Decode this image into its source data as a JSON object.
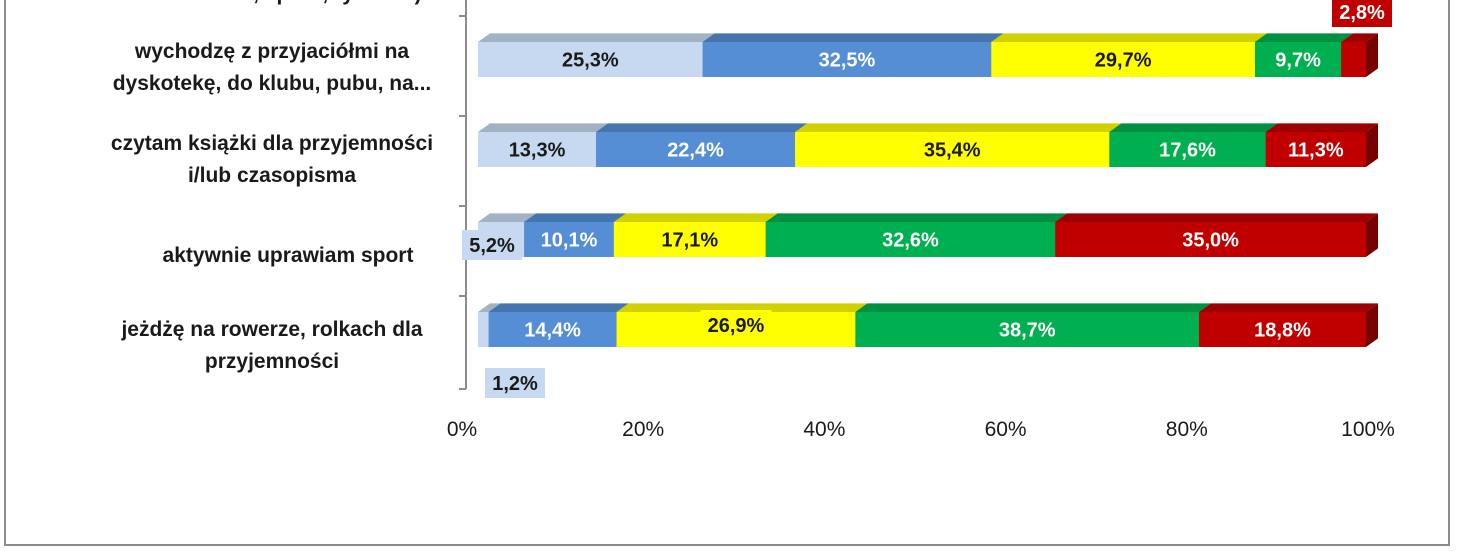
{
  "chart_data": {
    "type": "bar",
    "stacked": "percent",
    "orientation": "horizontal",
    "categories": [
      "instrumencie, śpiew, rysunek)",
      "wychodzę z przyjaciółmi na dyskotekę, do klubu, pubu, na...",
      "czytam książki dla przyjemności i/lub czasopisma",
      "aktywnie uprawiam sport",
      "jeżdżę na rowerze, rolkach dla przyjemności"
    ],
    "category_lines": [
      [
        "instrumencie, śpiew, rysunek)"
      ],
      [
        "wychodzę z przyjaciółmi na",
        "dyskotekę, do klubu, pubu, na..."
      ],
      [
        "czytam książki dla przyjemności",
        "i/lub czasopisma"
      ],
      [
        "aktywnie uprawiam sport"
      ],
      [
        "jeżdżę na rowerze, rolkach dla",
        "przyjemności"
      ]
    ],
    "series": [
      {
        "color": "#c6d9f0",
        "labelColor": "#1a1a1a",
        "values": [
          null,
          25.3,
          13.3,
          5.2,
          1.2
        ]
      },
      {
        "color": "#558ed5",
        "labelColor": "#ffffff",
        "values": [
          null,
          32.5,
          22.4,
          10.1,
          14.4
        ]
      },
      {
        "color": "#ffff00",
        "labelColor": "#1a1a1a",
        "values": [
          null,
          29.7,
          35.4,
          17.1,
          26.9
        ]
      },
      {
        "color": "#00b050",
        "labelColor": "#ffffff",
        "values": [
          null,
          9.7,
          17.6,
          32.6,
          38.7
        ]
      },
      {
        "color": "#c00000",
        "labelColor": "#ffffff",
        "values": [
          2.8,
          2.8,
          11.3,
          35.0,
          18.8
        ]
      }
    ],
    "data_labels": [
      [
        null,
        null,
        null,
        null,
        "2,8%"
      ],
      [
        "25,3%",
        "32,5%",
        "29,7%",
        "9,7%",
        null
      ],
      [
        "13,3%",
        "22,4%",
        "35,4%",
        "17,6%",
        "11,3%"
      ],
      [
        "5,2%",
        "10,1%",
        "17,1%",
        "32,6%",
        "35,0%"
      ],
      [
        "1,2%",
        "14,4%",
        "26,9%",
        "38,7%",
        "18,8%"
      ]
    ],
    "x_ticks": [
      "0%",
      "20%",
      "40%",
      "60%",
      "80%",
      "100%"
    ],
    "xlim": [
      0,
      100
    ],
    "grid": false,
    "legend": "none"
  }
}
